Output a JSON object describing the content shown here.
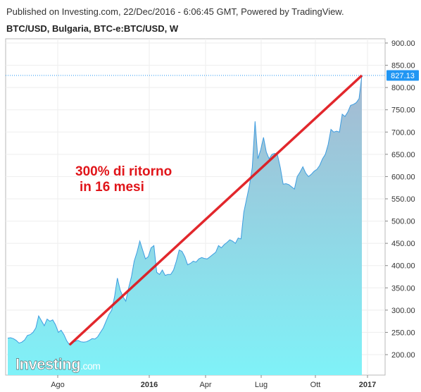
{
  "header": {
    "published": "Published on Investing.com, 22/Dec/2016 - 6:06:45 GMT, Powered by TradingView.",
    "symbol": "BTC/USD, Bulgaria, BTC-e:BTC/USD, W"
  },
  "watermark": {
    "brand": "Investing",
    "suffix": ".com"
  },
  "chart_data": {
    "type": "area",
    "title": "BTC/USD, Bulgaria, BTC-e:BTC/USD, W",
    "x_tick_labels": [
      "Ago",
      "2016",
      "Apr",
      "Lug",
      "Ott",
      "2017"
    ],
    "y_tick_labels": [
      "200.00",
      "250.00",
      "300.00",
      "350.00",
      "400.00",
      "450.00",
      "500.00",
      "550.00",
      "600.00",
      "650.00",
      "700.00",
      "750.00",
      "800.00",
      "850.00",
      "900.00"
    ],
    "ylim": [
      180,
      905
    ],
    "last_price": "827.13",
    "annotation": [
      "300% di ritorno",
      "in 16 mesi"
    ],
    "trendline": {
      "from": 222,
      "to": 827.13
    },
    "series": [
      {
        "values": [
          237,
          238,
          236,
          232,
          226,
          228,
          233,
          243,
          245,
          250,
          260,
          287,
          276,
          265,
          280,
          275,
          278,
          267,
          250,
          255,
          245,
          231,
          222,
          228,
          230,
          232,
          229,
          228,
          229,
          232,
          236,
          235,
          240,
          250,
          260,
          275,
          290,
          300,
          330,
          372,
          345,
          330,
          320,
          350,
          375,
          410,
          430,
          455,
          435,
          415,
          420,
          440,
          445,
          385,
          380,
          390,
          378,
          380,
          380,
          390,
          410,
          435,
          432,
          420,
          402,
          405,
          410,
          408,
          415,
          418,
          416,
          415,
          420,
          425,
          430,
          445,
          440,
          447,
          452,
          458,
          455,
          450,
          462,
          460,
          520,
          550,
          580,
          620,
          724,
          640,
          660,
          688,
          655,
          640,
          650,
          652,
          648,
          620,
          583,
          584,
          582,
          577,
          572,
          600,
          610,
          622,
          608,
          600,
          605,
          612,
          616,
          625,
          640,
          650,
          672,
          706,
          700,
          702,
          700,
          740,
          735,
          745,
          760,
          762,
          766,
          775,
          827.13
        ]
      }
    ]
  },
  "colors": {
    "line": "#3d9ce0",
    "fill_top": "#a6b8d0",
    "fill_bottom": "#7ff2f8",
    "trendline": "#e0151a",
    "price_badge": "#2196f3",
    "annotation_text": "#e0151a"
  }
}
